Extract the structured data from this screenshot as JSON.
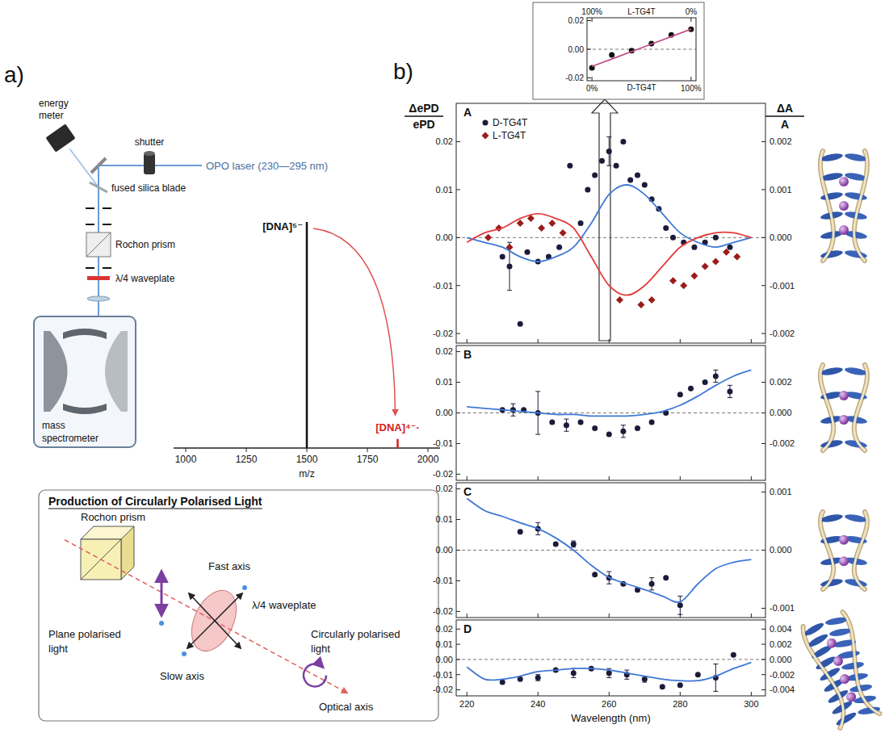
{
  "panel_labels": [
    "a)",
    "b)"
  ],
  "setup": {
    "labels": {
      "energy_meter": "energy meter",
      "shutter": "shutter",
      "laser": "OPO laser (230—295 nm)",
      "blade": "fused silica blade",
      "prism": "Rochon prism",
      "waveplate": "λ/4 waveplate",
      "spectrometer": "mass spectrometer"
    }
  },
  "polarisation": {
    "title": "Production of Circularly Polarised Light",
    "labels": {
      "prism": "Rochon prism",
      "fast_axis": "Fast axis",
      "waveplate": "λ/4 waveplate",
      "plane": "Plane polarised light",
      "slow_axis": "Slow axis",
      "circular": "Circularly polarised light",
      "optical_axis": "Optical axis"
    }
  },
  "chart_data": [
    {
      "type": "bar",
      "x": [
        1500,
        1875
      ],
      "values": [
        100,
        4
      ],
      "colors": [
        "#111111",
        "#d42020"
      ],
      "annotations": [
        "[DNA]⁵⁻",
        "[DNA]⁴⁻·"
      ],
      "xlim": [
        950,
        2050
      ],
      "xticks": [
        1000,
        1250,
        1500,
        1750,
        2000
      ],
      "ylim": [
        0,
        100
      ],
      "xlabel": "m/z",
      "tick_labels": "x"
    },
    {
      "type": "scatter",
      "title": "A",
      "xlim": [
        217,
        304
      ],
      "xticks": [
        220,
        240,
        260,
        280,
        300
      ],
      "ylim": [
        -0.022,
        0.028
      ],
      "yticks": [
        0.02,
        0.01,
        {
          "value": 0,
          "label": "0.00"
        },
        -0.01,
        -0.02
      ],
      "y2lim": [
        -0.0022,
        0.0028
      ],
      "y2ticks": [
        0.002,
        0.001,
        {
          "value": 0,
          "label": "0.000"
        },
        -0.001,
        -0.002
      ],
      "ylabel": [
        "ΔePD",
        "ePD"
      ],
      "y2label": [
        "ΔA",
        "A"
      ],
      "tick_labels": "y",
      "legend": "upper left",
      "series": [
        {
          "name": "D-TG4T",
          "type": "scatter",
          "marker": "circle",
          "color": "#1b1b3a",
          "x": [
            230,
            232,
            235,
            237,
            240,
            243,
            246,
            249,
            252,
            254,
            256,
            258,
            260,
            262,
            264,
            266,
            268,
            270,
            272,
            274,
            276,
            278,
            281,
            284,
            287,
            290,
            294
          ],
          "values": [
            -0.004,
            -0.006,
            -0.018,
            -0.003,
            -0.005,
            -0.004,
            -0.002,
            0.015,
            0.003,
            0.01,
            0.013,
            0.016,
            0.018,
            0.015,
            0.02,
            0.012,
            0.013,
            0.011,
            0.008,
            0.006,
            0.002,
            0,
            -0.001,
            -0.002,
            -0.001,
            0,
            -0.002
          ],
          "errors": [
            null,
            0.005,
            null,
            null,
            null,
            null,
            null,
            null,
            null,
            null,
            null,
            null,
            0.003,
            null,
            null,
            null,
            null,
            null,
            null,
            null,
            null,
            null,
            null,
            null,
            null,
            null,
            null
          ]
        },
        {
          "name": "L-TG4T",
          "type": "scatter",
          "marker": "diamond",
          "color": "#9b1c1c",
          "x": [
            226,
            229,
            232,
            235,
            238,
            241,
            244,
            247,
            263,
            269,
            272,
            278,
            281,
            284,
            287,
            290,
            293,
            296
          ],
          "values": [
            0,
            0.002,
            -0.002,
            0.003,
            0.004,
            0.002,
            0.003,
            0.001,
            -0.013,
            -0.014,
            -0.013,
            -0.009,
            -0.01,
            -0.008,
            -0.006,
            -0.005,
            -0.003,
            -0.004
          ]
        },
        {
          "type": "line",
          "axis": "y2",
          "line_style": "solid",
          "color": "#3f78d6",
          "x": [
            220,
            225,
            230,
            235,
            240,
            245,
            250,
            255,
            260,
            265,
            270,
            275,
            280,
            285,
            290,
            295,
            300
          ],
          "values": [
            0,
            -0.0001,
            -0.0002,
            -0.0004,
            -0.0005,
            -0.0004,
            -0.0002,
            0.0003,
            0.0009,
            0.0011,
            0.0009,
            0.0005,
            0.0001,
            -0.0001,
            -0.0002,
            -0.0001,
            0
          ]
        },
        {
          "type": "line",
          "axis": "y2",
          "line_style": "solid",
          "color": "#e23b3b",
          "x": [
            220,
            225,
            230,
            235,
            240,
            245,
            250,
            255,
            260,
            265,
            270,
            275,
            280,
            285,
            290,
            295,
            300
          ],
          "values": [
            -0.0001,
            0.0001,
            0.0002,
            0.0004,
            0.0005,
            0.0004,
            0.0002,
            -0.0004,
            -0.001,
            -0.0012,
            -0.001,
            -0.0006,
            -0.0002,
            0,
            0.0001,
            0.0001,
            0
          ]
        }
      ]
    },
    {
      "type": "scatter",
      "title": "B",
      "xlim": [
        217,
        304
      ],
      "xticks": [
        220,
        240,
        260,
        280,
        300
      ],
      "ylim": [
        -0.022,
        0.022
      ],
      "yticks": [
        0.02,
        0.01,
        {
          "value": 0,
          "label": "0.00"
        },
        -0.01,
        -0.02
      ],
      "y2lim": [
        -0.0044,
        0.0044
      ],
      "y2ticks": [
        0.002,
        {
          "value": 0,
          "label": "0.000"
        },
        -0.002
      ],
      "tick_labels": "y",
      "series": [
        {
          "type": "scatter",
          "marker": "circle",
          "color": "#1b1b3a",
          "x": [
            230,
            233,
            236,
            240,
            244,
            248,
            252,
            256,
            260,
            264,
            268,
            272,
            276,
            280,
            283,
            287,
            290,
            294
          ],
          "values": [
            0.001,
            0.001,
            0.001,
            0,
            -0.003,
            -0.004,
            -0.003,
            -0.005,
            -0.007,
            -0.006,
            -0.005,
            -0.003,
            0,
            0.006,
            0.008,
            0.01,
            0.012,
            0.007
          ],
          "errors": [
            null,
            0.002,
            null,
            0.007,
            null,
            0.002,
            null,
            null,
            null,
            0.002,
            null,
            null,
            null,
            null,
            null,
            null,
            0.002,
            0.002
          ]
        },
        {
          "type": "line",
          "axis": "y2",
          "line_style": "solid",
          "color": "#3f78d6",
          "x": [
            220,
            225,
            230,
            235,
            240,
            245,
            250,
            255,
            260,
            265,
            270,
            275,
            280,
            285,
            290,
            295,
            300
          ],
          "values": [
            0.0004,
            0.0003,
            0.0002,
            0.0001,
            0,
            -0.0001,
            -0.0001,
            -0.0002,
            -0.0002,
            -0.0002,
            -0.0001,
            0.0001,
            0.0005,
            0.0011,
            0.0018,
            0.0024,
            0.0028
          ]
        }
      ]
    },
    {
      "type": "scatter",
      "title": "C",
      "xlim": [
        217,
        304
      ],
      "xticks": [
        220,
        240,
        260,
        280,
        300
      ],
      "ylim": [
        -0.022,
        0.022
      ],
      "yticks": [
        0.02,
        0.01,
        {
          "value": 0,
          "label": "0.00"
        },
        -0.01,
        -0.02
      ],
      "y2lim": [
        -0.00116,
        0.00116
      ],
      "y2ticks": [
        0.001,
        {
          "value": 0,
          "label": "0.000"
        },
        -0.001
      ],
      "tick_labels": "y",
      "series": [
        {
          "type": "scatter",
          "marker": "circle",
          "color": "#1b1b3a",
          "x": [
            235,
            240,
            245,
            250,
            256,
            260,
            264,
            268,
            272,
            276,
            280
          ],
          "values": [
            0.006,
            0.007,
            0.002,
            0.002,
            -0.008,
            -0.009,
            -0.011,
            -0.013,
            -0.011,
            -0.009,
            -0.018
          ],
          "errors": [
            null,
            0.002,
            null,
            0.001,
            null,
            0.002,
            null,
            null,
            0.002,
            null,
            0.003
          ]
        },
        {
          "type": "line",
          "axis": "y2",
          "line_style": "solid",
          "color": "#3f78d6",
          "x": [
            220,
            225,
            230,
            235,
            240,
            245,
            250,
            255,
            260,
            265,
            270,
            275,
            280,
            285,
            290,
            295,
            300
          ],
          "values": [
            0.00089,
            0.00068,
            0.00058,
            0.00047,
            0.00037,
            0.00021,
            0,
            -0.00026,
            -0.00047,
            -0.00058,
            -0.00068,
            -0.00079,
            -0.00089,
            -0.00058,
            -0.00032,
            -0.00021,
            -0.00016
          ]
        }
      ]
    },
    {
      "type": "scatter",
      "title": "D",
      "xlim": [
        217,
        304
      ],
      "xticks": [
        220,
        240,
        260,
        280,
        300
      ],
      "xlabel": "Wavelength (nm)",
      "ylim": [
        -0.024,
        0.026
      ],
      "yticks": [
        0.02,
        0.01,
        {
          "value": 0,
          "label": "0.00"
        },
        -0.01,
        -0.02
      ],
      "y2lim": [
        -0.0048,
        0.0052
      ],
      "y2ticks": [
        0.004,
        0.002,
        {
          "value": 0,
          "label": "0.000"
        },
        -0.002,
        -0.004
      ],
      "series": [
        {
          "type": "scatter",
          "marker": "circle",
          "color": "#1b1b3a",
          "x": [
            230,
            235,
            240,
            245,
            250,
            255,
            260,
            265,
            270,
            275,
            280,
            285,
            290,
            295
          ],
          "values": [
            -0.015,
            -0.013,
            -0.012,
            -0.007,
            -0.009,
            -0.006,
            -0.009,
            -0.01,
            -0.013,
            -0.018,
            -0.017,
            -0.01,
            -0.012,
            0.003
          ],
          "errors": [
            null,
            null,
            0.002,
            null,
            0.003,
            null,
            0.003,
            0.003,
            0.002,
            null,
            null,
            null,
            0.009,
            null
          ]
        },
        {
          "type": "line",
          "axis": "y2",
          "line_style": "solid",
          "color": "#3f78d6",
          "x": [
            220,
            225,
            230,
            235,
            240,
            245,
            250,
            255,
            260,
            265,
            270,
            275,
            280,
            285,
            290,
            295,
            300
          ],
          "values": [
            -0.001,
            -0.0026,
            -0.0026,
            -0.0022,
            -0.0016,
            -0.0014,
            -0.0012,
            -0.0012,
            -0.0014,
            -0.0018,
            -0.0022,
            -0.0026,
            -0.0028,
            -0.0028,
            -0.0022,
            -0.0012,
            -0.0004
          ]
        }
      ]
    },
    {
      "type": "scatter",
      "xlim": [
        -5,
        105
      ],
      "xticks": [
        {
          "value": 0,
          "label": "0%"
        },
        {
          "value": 100,
          "label": "100%"
        }
      ],
      "xlabel": "D-TG4T",
      "x2lim": [
        105,
        -5
      ],
      "x2ticks": [
        {
          "value": 100,
          "label": "100%"
        },
        {
          "value": 0,
          "label": "0%"
        }
      ],
      "x2label": "L-TG4T",
      "ylim": [
        -0.022,
        0.022
      ],
      "yticks": [
        0.02,
        {
          "value": 0,
          "label": "0.00"
        },
        -0.02
      ],
      "series": [
        {
          "type": "scatter",
          "marker": "circle",
          "color": "#111111",
          "x": [
            0,
            20,
            40,
            60,
            80,
            100
          ],
          "values": [
            -0.013,
            -0.004,
            -0.001,
            0.004,
            0.01,
            0.014
          ]
        },
        {
          "type": "line",
          "line_style": "solid",
          "color": "#c0508a",
          "x": [
            0,
            100
          ],
          "values": [
            -0.012,
            0.014
          ]
        }
      ]
    }
  ]
}
